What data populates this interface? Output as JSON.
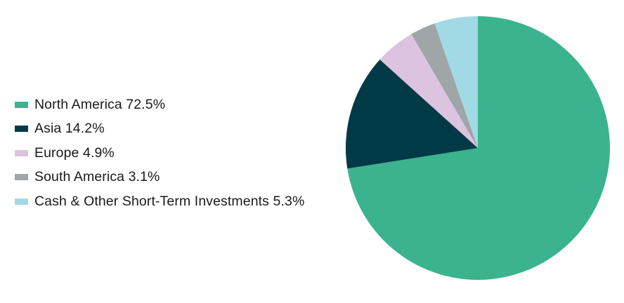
{
  "chart_data": {
    "type": "pie",
    "slices": [
      {
        "label": "North America 72.5%",
        "name": "North America",
        "value": 72.5,
        "color": "#3bb38e"
      },
      {
        "label": "Asia 14.2%",
        "name": "Asia",
        "value": 14.2,
        "color": "#003a47"
      },
      {
        "label": "Europe 4.9%",
        "name": "Europe",
        "value": 4.9,
        "color": "#dcc4e1"
      },
      {
        "label": "South America 3.1%",
        "name": "South America",
        "value": 3.1,
        "color": "#a0a5a8"
      },
      {
        "label": "Cash & Other Short-Term Investments 5.3%",
        "name": "Cash & Other Short-Term Investments",
        "value": 5.3,
        "color": "#a1dae4"
      }
    ],
    "legend_position": "left",
    "start_angle": "12 o'clock",
    "direction": "clockwise"
  }
}
